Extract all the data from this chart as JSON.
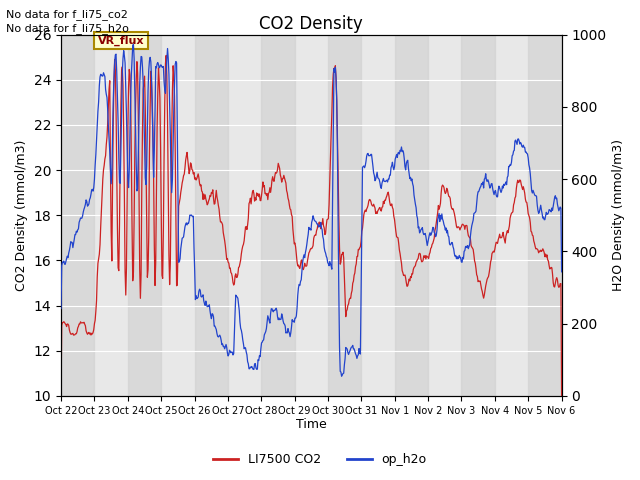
{
  "title": "CO2 Density",
  "xlabel": "Time",
  "ylabel_left": "CO2 Density (mmol/m3)",
  "ylabel_right": "H2O Density (mmol/m3)",
  "ylim_left": [
    10,
    26
  ],
  "ylim_right": [
    0,
    1000
  ],
  "line1_color": "#cc2222",
  "line2_color": "#2244cc",
  "line1_label": "LI7500 CO2",
  "line2_label": "op_h2o",
  "vr_flux_label": "VR_flux",
  "no_data_text1": "No data for f_li75_co2",
  "no_data_text2": "No data for f_li75_h2o",
  "background_color": "#ffffff",
  "plot_bg_color": "#e8e8e8",
  "shade_color": "#d0d0d0",
  "shade_alpha": 0.6,
  "xtick_labels": [
    "Oct 22",
    "Oct 23",
    "Oct 24",
    "Oct 25",
    "Oct 26",
    "Oct 27",
    "Oct 28",
    "Oct 29",
    "Oct 30",
    "Oct 31",
    "Nov 1",
    "Nov 2",
    "Nov 3",
    "Nov 4",
    "Nov 5",
    "Nov 6"
  ],
  "figsize": [
    6.4,
    4.8
  ],
  "dpi": 100
}
